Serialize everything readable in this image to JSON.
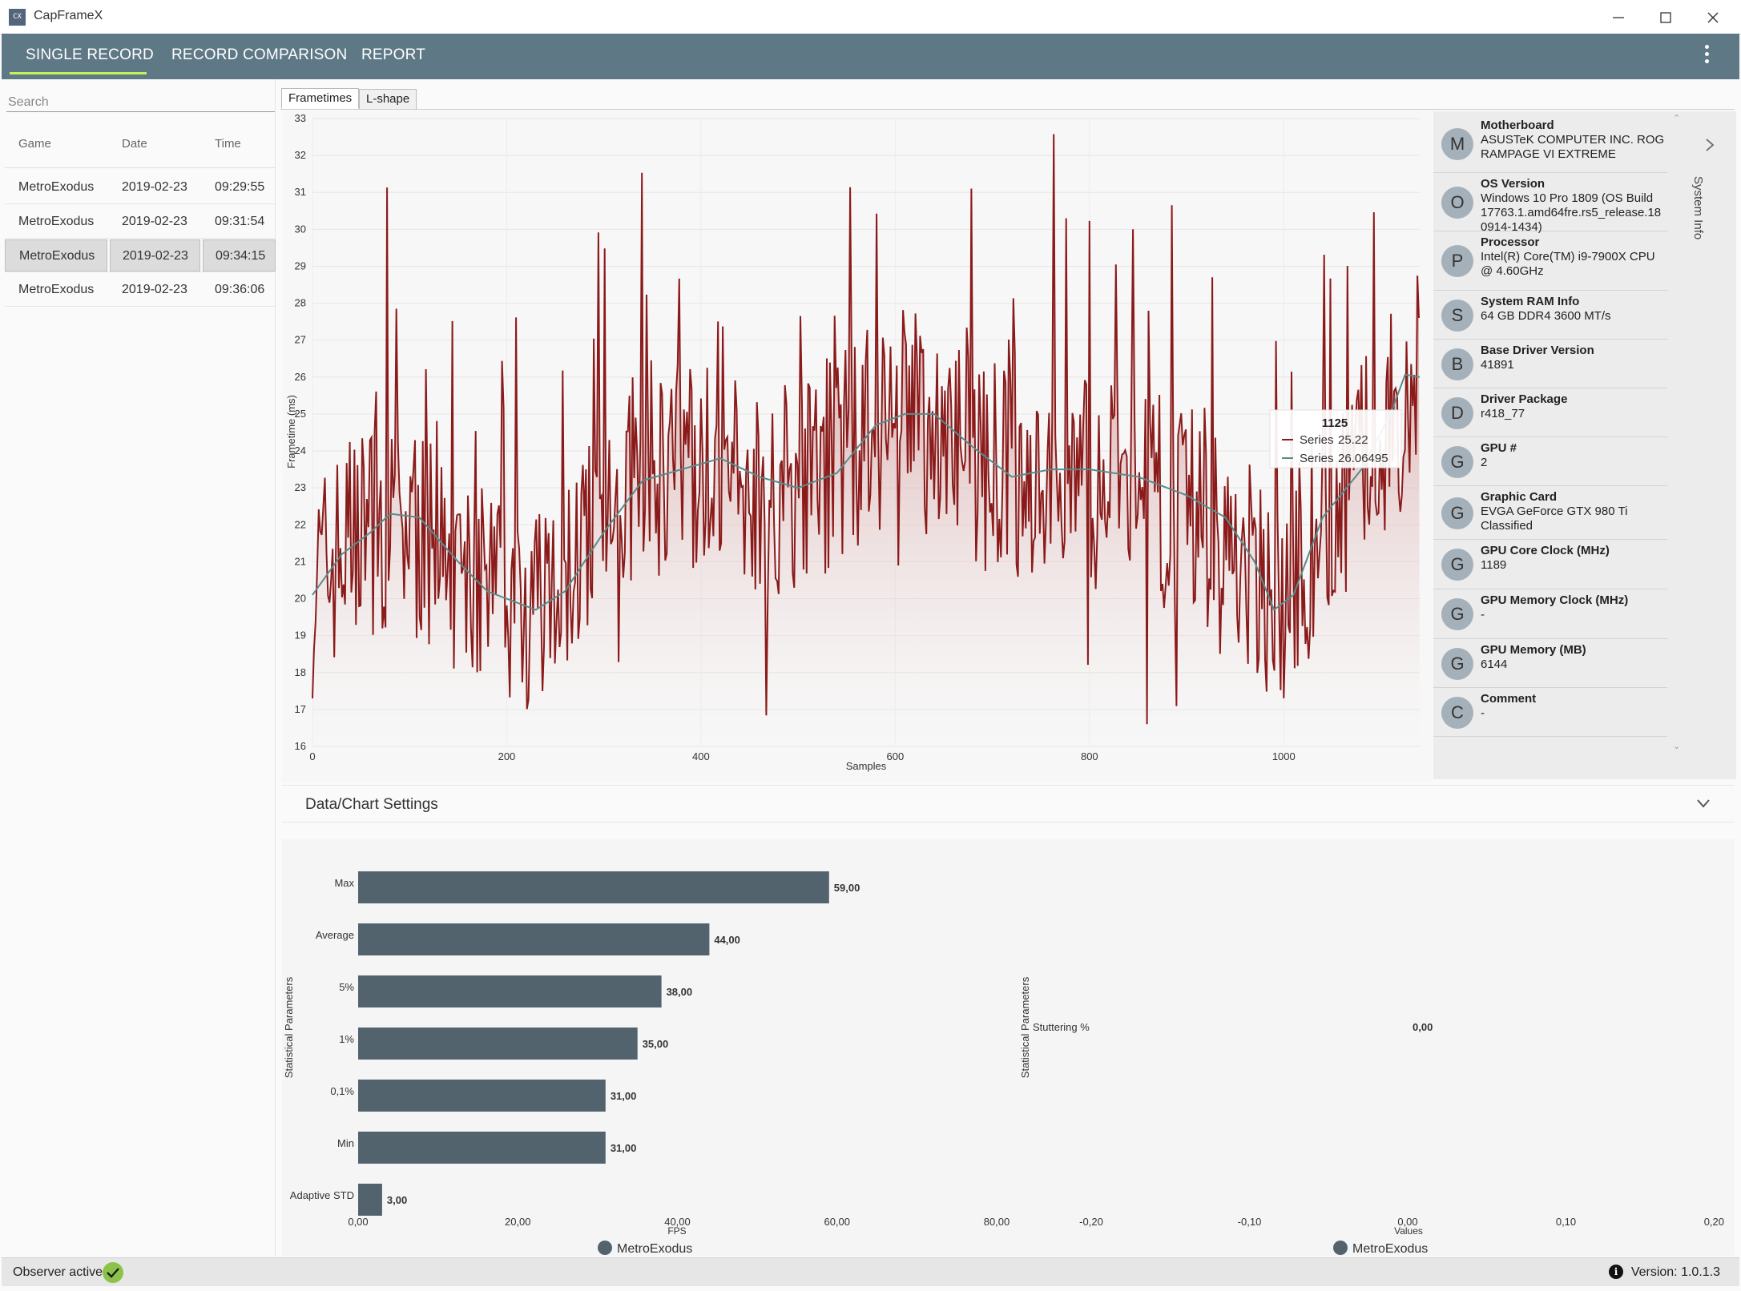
{
  "window": {
    "title": "CapFrameX",
    "icon_text": "CX",
    "controls": [
      "minimize-icon",
      "maximize-icon",
      "close-icon"
    ]
  },
  "nav": {
    "tabs": [
      {
        "label": "SINGLE RECORD",
        "active": true
      },
      {
        "label": "RECORD COMPARISON",
        "active": false
      },
      {
        "label": "REPORT",
        "active": false
      }
    ],
    "menu_icon": "more-vert-icon",
    "accent": "#c6f05a",
    "bar_color": "#5f7886"
  },
  "records": {
    "search_placeholder": "Search",
    "columns": [
      "Game",
      "Date",
      "Time"
    ],
    "rows": [
      {
        "game": "MetroExodus",
        "date": "2019-02-23",
        "time": "09:29:55",
        "selected": false
      },
      {
        "game": "MetroExodus",
        "date": "2019-02-23",
        "time": "09:31:54",
        "selected": false
      },
      {
        "game": "MetroExodus",
        "date": "2019-02-23",
        "time": "09:34:15",
        "selected": true
      },
      {
        "game": "MetroExodus",
        "date": "2019-02-23",
        "time": "09:36:06",
        "selected": false
      }
    ]
  },
  "chart_tabs": [
    {
      "label": "Frametimes",
      "active": true
    },
    {
      "label": "L-shape",
      "active": false
    }
  ],
  "tooltip": {
    "title": "1125",
    "rows": [
      {
        "label": "Series",
        "value": "25.22"
      },
      {
        "label": "Series",
        "value": "26.06495"
      }
    ]
  },
  "system_info": {
    "side_label": "System Info",
    "items": [
      {
        "avatar": "M",
        "title": "Motherboard",
        "value": [
          "ASUSTeK COMPUTER INC. ROG",
          "RAMPAGE VI EXTREME"
        ]
      },
      {
        "avatar": "O",
        "title": "OS Version",
        "value": [
          "Windows 10 Pro 1809 (OS Build",
          "17763.1.amd64fre.rs5_release.18",
          "0914-1434)"
        ]
      },
      {
        "avatar": "P",
        "title": "Processor",
        "value": [
          "Intel(R) Core(TM) i9-7900X CPU",
          "@ 4.60GHz"
        ]
      },
      {
        "avatar": "S",
        "title": "System RAM Info",
        "value": [
          "64 GB DDR4 3600 MT/s"
        ]
      },
      {
        "avatar": "B",
        "title": "Base Driver Version",
        "value": [
          "41891"
        ]
      },
      {
        "avatar": "D",
        "title": "Driver Package",
        "value": [
          "r418_77"
        ]
      },
      {
        "avatar": "G",
        "title": "GPU #",
        "value": [
          "2"
        ]
      },
      {
        "avatar": "G",
        "title": "Graphic Card",
        "value": [
          "EVGA GeForce GTX 980 Ti",
          "Classified"
        ]
      },
      {
        "avatar": "G",
        "title": "GPU Core Clock (MHz)",
        "value": [
          "1189"
        ]
      },
      {
        "avatar": "G",
        "title": "GPU Memory Clock (MHz)",
        "value": [
          "-"
        ]
      },
      {
        "avatar": "G",
        "title": "GPU Memory (MB)",
        "value": [
          "6144"
        ]
      },
      {
        "avatar": "C",
        "title": "Comment",
        "value": [
          "-"
        ]
      }
    ]
  },
  "settings": {
    "title": "Data/Chart Settings",
    "icon": "chevron-down-icon"
  },
  "status": {
    "observer_label": "Observer active:",
    "observer_icon": "check-circle-icon",
    "version": "Version: 1.0.1.3",
    "info_icon": "info-icon"
  },
  "colors": {
    "frametime_line": "#8b1a1a",
    "moving_average": "#5b8a8a",
    "bar": "#53636e"
  },
  "chart_data": [
    {
      "type": "line",
      "title": "",
      "xlabel": "Samples",
      "ylabel": "Frametime (ms)",
      "xlim": [
        0,
        1140
      ],
      "ylim": [
        16,
        33
      ],
      "xticks": [
        0,
        200,
        400,
        600,
        800,
        1000
      ],
      "yticks": [
        16,
        17,
        18,
        19,
        20,
        21,
        22,
        23,
        24,
        25,
        26,
        27,
        28,
        29,
        30,
        31,
        32,
        33
      ],
      "grid": true,
      "series": [
        {
          "name": "Series",
          "kind": "frametime",
          "x": [
            0,
            50,
            100,
            150,
            200,
            250,
            300,
            350,
            400,
            450,
            500,
            550,
            600,
            650,
            700,
            750,
            800,
            850,
            900,
            950,
            1000,
            1050,
            1100,
            1125,
            1140
          ],
          "y": [
            20.3,
            22.0,
            22.0,
            20.5,
            20.0,
            20.0,
            22.5,
            23.5,
            23.5,
            23.0,
            23.0,
            24.0,
            25.0,
            24.5,
            23.5,
            23.5,
            23.0,
            23.0,
            22.5,
            21.0,
            20.0,
            22.5,
            24.5,
            25.22,
            26.0
          ]
        },
        {
          "name": "Series",
          "kind": "moving-average",
          "x": [
            0,
            30,
            60,
            80,
            110,
            150,
            180,
            230,
            260,
            300,
            340,
            380,
            420,
            460,
            500,
            540,
            580,
            610,
            640,
            680,
            720,
            760,
            800,
            850,
            900,
            940,
            970,
            990,
            1010,
            1040,
            1080,
            1110,
            1125,
            1140
          ],
          "y": [
            20.1,
            21.2,
            21.8,
            22.3,
            22.2,
            21.0,
            20.2,
            19.7,
            20.2,
            21.8,
            23.2,
            23.5,
            23.8,
            23.3,
            23.0,
            23.4,
            24.7,
            25.0,
            25.0,
            24.1,
            23.3,
            23.5,
            23.5,
            23.3,
            22.8,
            22.2,
            21.0,
            19.7,
            20.1,
            22.2,
            23.5,
            25.0,
            26.06495,
            26.0
          ]
        }
      ]
    },
    {
      "type": "bar",
      "orientation": "horizontal",
      "title": "",
      "xlabel": "FPS",
      "ylabel": "Statistical Parameters",
      "categories": [
        "Max",
        "Average",
        "5%",
        "1%",
        "0,1%",
        "Min",
        "Adaptive STD"
      ],
      "series": [
        {
          "name": "MetroExodus",
          "values": [
            59,
            44,
            38,
            35,
            31,
            31,
            3
          ]
        }
      ],
      "value_labels": [
        "59,00",
        "44,00",
        "38,00",
        "35,00",
        "31,00",
        "31,00",
        "3,00"
      ],
      "xlim": [
        0,
        80
      ],
      "xticks": [
        "0,00",
        "20,00",
        "40,00",
        "60,00",
        "80,00"
      ],
      "legend": "bottom"
    },
    {
      "type": "bar",
      "orientation": "horizontal",
      "title": "",
      "xlabel": "Values",
      "ylabel": "Statistical Parameters",
      "categories": [
        "Stuttering %"
      ],
      "series": [
        {
          "name": "MetroExodus",
          "values": [
            0
          ]
        }
      ],
      "value_labels": [
        "0,00"
      ],
      "xlim": [
        -0.2,
        0.2
      ],
      "xticks": [
        "-0,20",
        "-0,10",
        "0,00",
        "0,10",
        "0,20"
      ],
      "legend": "bottom"
    }
  ]
}
